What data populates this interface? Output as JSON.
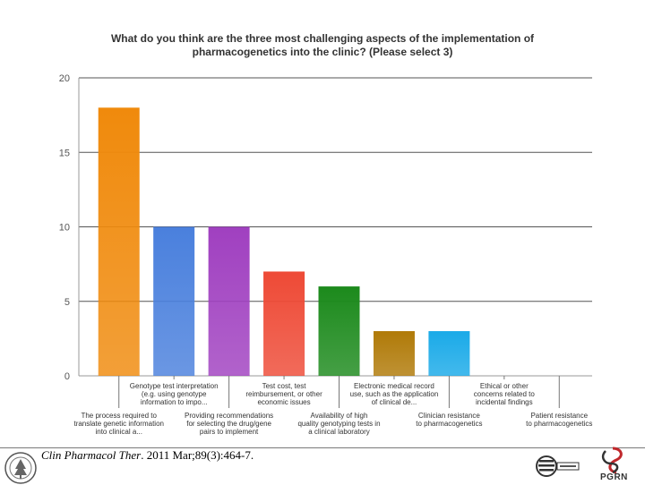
{
  "chart_data": {
    "type": "bar",
    "title": "What do you think are the three most challenging aspects of the implementation of pharmacogenetics into the clinic? (Please select 3)",
    "xlabel": "",
    "ylabel": "",
    "ylim": [
      0,
      20
    ],
    "yticks": [
      "0",
      "5",
      "10",
      "15",
      "20"
    ],
    "grid": true,
    "categories": [
      "The process required to translate genetic information into clinical a...",
      "Genotype test interpretation (e.g. using genotype information to impo...",
      "Providing recommendations for selecting the drug/gene pairs to implement",
      "Test cost, test reimbursement, or other economic issues",
      "Availability of high quality genotyping tests in a clinical laboratory",
      "Electronic medical record use, such as the application of clinical de...",
      "Clinician resistance to pharmacogenetics",
      "Ethical or other concerns related to incidental findings",
      "Patient resistance to pharmacogenetics"
    ],
    "category_lines": [
      [
        "The process required to",
        "translate genetic information",
        "into clinical a..."
      ],
      [
        "Genotype test interpretation",
        "(e.g. using genotype",
        "information to impo..."
      ],
      [
        "Providing recommendations",
        "for selecting the drug/gene",
        "pairs to implement"
      ],
      [
        "Test cost, test",
        "reimbursement, or other",
        "economic issues"
      ],
      [
        "Availability of high",
        "quality genotyping tests in",
        "a clinical laboratory"
      ],
      [
        "Electronic medical record",
        "use, such as the application",
        "of clinical de..."
      ],
      [
        "Clinician resistance",
        "to pharmacogenetics"
      ],
      [
        "Ethical or other",
        "concerns related to",
        "incidental findings"
      ],
      [
        "Patient resistance",
        "to pharmacogenetics"
      ]
    ],
    "values": [
      18,
      10,
      10,
      7,
      6,
      3,
      3,
      0,
      0
    ],
    "colors": [
      "#f08a0c",
      "#4a80dd",
      "#a040c0",
      "#ee4a36",
      "#1c8a1c",
      "#b07a08",
      "#1aaae8",
      "#cccccc",
      "#cccccc"
    ]
  },
  "footer": {
    "citation_journal": "Clin Pharmacol Ther",
    "citation_rest": ". 2011 Mar;89(3):464-7.",
    "logo_text": "PGRN"
  }
}
